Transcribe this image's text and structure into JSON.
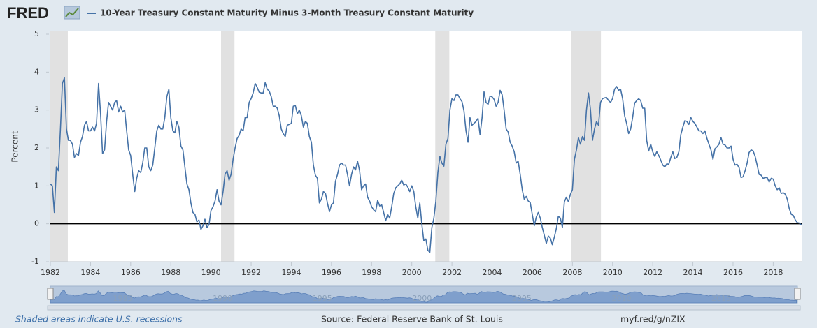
{
  "logo": "FRED",
  "chart_data": {
    "type": "line",
    "y_label": "Percent",
    "series": [
      {
        "name": "10-Year Treasury Constant Maturity Minus 3-Month Treasury Constant Maturity",
        "color": "#4572a7",
        "values": [
          1.05,
          1.0,
          0.3,
          1.5,
          1.4,
          2.5,
          3.7,
          3.85,
          2.5,
          2.2,
          2.2,
          2.1,
          1.75,
          1.85,
          1.8,
          2.15,
          2.3,
          2.6,
          2.7,
          2.45,
          2.45,
          2.55,
          2.45,
          2.65,
          3.7,
          2.9,
          1.85,
          1.95,
          2.7,
          3.2,
          3.1,
          3.0,
          3.2,
          3.25,
          2.95,
          3.1,
          2.95,
          3.0,
          2.45,
          1.95,
          1.8,
          1.3,
          0.85,
          1.2,
          1.4,
          1.35,
          1.6,
          2.0,
          2.0,
          1.5,
          1.4,
          1.55,
          2.0,
          2.45,
          2.6,
          2.5,
          2.5,
          2.8,
          3.35,
          3.55,
          2.8,
          2.45,
          2.4,
          2.7,
          2.55,
          2.05,
          1.95,
          1.5,
          1.05,
          0.9,
          0.55,
          0.3,
          0.25,
          0.05,
          0.1,
          -0.15,
          -0.05,
          0.12,
          -0.1,
          -0.02,
          0.35,
          0.45,
          0.6,
          0.9,
          0.6,
          0.5,
          0.85,
          1.3,
          1.4,
          1.15,
          1.3,
          1.7,
          2.0,
          2.25,
          2.33,
          2.5,
          2.45,
          2.8,
          2.8,
          3.2,
          3.3,
          3.45,
          3.7,
          3.6,
          3.47,
          3.45,
          3.45,
          3.72,
          3.55,
          3.5,
          3.35,
          3.1,
          3.1,
          3.05,
          2.85,
          2.5,
          2.38,
          2.3,
          2.6,
          2.62,
          2.65,
          3.1,
          3.12,
          2.9,
          3.0,
          2.85,
          2.55,
          2.7,
          2.65,
          2.3,
          2.15,
          1.55,
          1.28,
          1.2,
          0.55,
          0.65,
          0.85,
          0.8,
          0.55,
          0.32,
          0.5,
          0.55,
          1.12,
          1.3,
          1.55,
          1.6,
          1.55,
          1.55,
          1.3,
          1.0,
          1.3,
          1.5,
          1.42,
          1.65,
          1.4,
          0.9,
          1.0,
          1.05,
          0.7,
          0.6,
          0.45,
          0.37,
          0.32,
          0.62,
          0.47,
          0.5,
          0.3,
          0.08,
          0.25,
          0.15,
          0.45,
          0.8,
          0.95,
          1.0,
          1.05,
          1.15,
          1.02,
          1.05,
          0.97,
          0.85,
          1.0,
          0.85,
          0.45,
          0.15,
          0.55,
          0.0,
          -0.45,
          -0.4,
          -0.7,
          -0.75,
          -0.1,
          0.15,
          0.6,
          1.35,
          1.78,
          1.6,
          1.52,
          2.1,
          2.25,
          3.0,
          3.3,
          3.25,
          3.4,
          3.4,
          3.3,
          3.22,
          2.98,
          2.45,
          2.15,
          2.8,
          2.6,
          2.65,
          2.7,
          2.78,
          2.35,
          2.8,
          3.48,
          3.2,
          3.15,
          3.37,
          3.35,
          3.28,
          3.1,
          3.2,
          3.52,
          3.4,
          3.0,
          2.5,
          2.42,
          2.15,
          2.05,
          1.9,
          1.6,
          1.65,
          1.3,
          0.9,
          0.65,
          0.72,
          0.6,
          0.56,
          0.25,
          -0.05,
          0.18,
          0.3,
          0.15,
          -0.1,
          -0.3,
          -0.52,
          -0.32,
          -0.38,
          -0.55,
          -0.35,
          -0.12,
          0.2,
          0.15,
          -0.1,
          0.58,
          0.7,
          0.58,
          0.78,
          0.9,
          1.7,
          1.95,
          2.27,
          2.1,
          2.3,
          2.2,
          3.0,
          3.45,
          3.0,
          2.2,
          2.5,
          2.7,
          2.6,
          3.2,
          3.3,
          3.32,
          3.33,
          3.25,
          3.2,
          3.3,
          3.55,
          3.62,
          3.52,
          3.55,
          3.3,
          2.85,
          2.65,
          2.38,
          2.5,
          2.8,
          3.18,
          3.25,
          3.3,
          3.25,
          3.05,
          3.05,
          2.2,
          1.92,
          2.1,
          1.9,
          1.78,
          1.9,
          1.8,
          1.68,
          1.55,
          1.5,
          1.58,
          1.57,
          1.75,
          1.9,
          1.72,
          1.75,
          1.9,
          2.35,
          2.55,
          2.72,
          2.7,
          2.62,
          2.8,
          2.7,
          2.65,
          2.55,
          2.45,
          2.45,
          2.38,
          2.45,
          2.25,
          2.1,
          1.95,
          1.7,
          1.98,
          2.03,
          2.1,
          2.28,
          2.1,
          2.08,
          2.0,
          2.0,
          2.05,
          1.7,
          1.55,
          1.57,
          1.48,
          1.22,
          1.24,
          1.4,
          1.6,
          1.88,
          1.95,
          1.92,
          1.78,
          1.55,
          1.3,
          1.28,
          1.2,
          1.22,
          1.22,
          1.1,
          1.2,
          1.18,
          1.0,
          0.9,
          0.95,
          0.8,
          0.82,
          0.78,
          0.65,
          0.4,
          0.25,
          0.22,
          0.1,
          0.03,
          0.02,
          -0.03
        ]
      }
    ],
    "x": [
      1982,
      1982.1,
      1982.2,
      1982.3,
      1982.4,
      1982.5,
      1982.6,
      1982.7,
      1982.8,
      1982.9,
      1983,
      1983.1,
      1983.2,
      1983.3,
      1983.4,
      1983.5,
      1983.6,
      1983.7,
      1983.8,
      1983.9,
      1984,
      1984.1,
      1984.2,
      1984.3,
      1984.4,
      1984.5,
      1984.6,
      1984.7,
      1984.8,
      1984.9,
      1985,
      1985.1,
      1985.2,
      1985.3,
      1985.4,
      1985.5,
      1985.6,
      1985.7,
      1985.8,
      1985.9,
      1986,
      1986.1,
      1986.2,
      1986.3,
      1986.4,
      1986.5,
      1986.6,
      1986.7,
      1986.8,
      1986.9,
      1987,
      1987.1,
      1987.2,
      1987.3,
      1987.4,
      1987.5,
      1987.6,
      1987.7,
      1987.8,
      1987.9,
      1988,
      1988.1,
      1988.2,
      1988.3,
      1988.4,
      1988.5,
      1988.6,
      1988.7,
      1988.8,
      1988.9,
      1989,
      1989.1,
      1989.2,
      1989.3,
      1989.4,
      1989.5,
      1989.6,
      1989.7,
      1989.8,
      1989.9,
      1990,
      1990.1,
      1990.2,
      1990.3,
      1990.4,
      1990.5,
      1990.6,
      1990.7,
      1990.8,
      1990.9,
      1991,
      1991.1,
      1991.2,
      1991.3,
      1991.4,
      1991.5,
      1991.6,
      1991.7,
      1991.8,
      1991.9,
      1992,
      1992.1,
      1992.2,
      1992.3,
      1992.4,
      1992.5,
      1992.6,
      1992.7,
      1992.8,
      1992.9,
      1993,
      1993.1,
      1993.2,
      1993.3,
      1993.4,
      1993.5,
      1993.6,
      1993.7,
      1993.8,
      1993.9,
      1994,
      1994.1,
      1994.2,
      1994.3,
      1994.4,
      1994.5,
      1994.6,
      1994.7,
      1994.8,
      1994.9,
      1995,
      1995.1,
      1995.2,
      1995.3,
      1995.4,
      1995.5,
      1995.6,
      1995.7,
      1995.8,
      1995.9,
      1996,
      1996.1,
      1996.2,
      1996.3,
      1996.4,
      1996.5,
      1996.6,
      1996.7,
      1996.8,
      1996.9,
      1997,
      1997.1,
      1997.2,
      1997.3,
      1997.4,
      1997.5,
      1997.6,
      1997.7,
      1997.8,
      1997.9,
      1998,
      1998.1,
      1998.2,
      1998.3,
      1998.4,
      1998.5,
      1998.6,
      1998.7,
      1998.8,
      1998.9,
      1999,
      1999.1,
      1999.2,
      1999.3,
      1999.4,
      1999.5,
      1999.6,
      1999.7,
      1999.8,
      1999.9,
      2000,
      2000.1,
      2000.2,
      2000.3,
      2000.4,
      2000.5,
      2000.6,
      2000.7,
      2000.8,
      2000.9,
      2001,
      2001.1,
      2001.2,
      2001.3,
      2001.4,
      2001.5,
      2001.6,
      2001.7,
      2001.8,
      2001.9,
      2002,
      2002.1,
      2002.2,
      2002.3,
      2002.4,
      2002.5,
      2002.6,
      2002.7,
      2002.8,
      2002.9,
      2003,
      2003.1,
      2003.2,
      2003.3,
      2003.4,
      2003.5,
      2003.6,
      2003.7,
      2003.8,
      2003.9,
      2004,
      2004.1,
      2004.2,
      2004.3,
      2004.4,
      2004.5,
      2004.6,
      2004.7,
      2004.8,
      2004.9,
      2005,
      2005.1,
      2005.2,
      2005.3,
      2005.4,
      2005.5,
      2005.6,
      2005.7,
      2005.8,
      2005.9,
      2006,
      2006.1,
      2006.2,
      2006.3,
      2006.4,
      2006.5,
      2006.6,
      2006.7,
      2006.8,
      2006.9,
      2007,
      2007.1,
      2007.2,
      2007.3,
      2007.4,
      2007.5,
      2007.6,
      2007.7,
      2007.8,
      2007.9,
      2008,
      2008.1,
      2008.2,
      2008.3,
      2008.4,
      2008.5,
      2008.6,
      2008.7,
      2008.8,
      2008.9,
      2009,
      2009.1,
      2009.2,
      2009.3,
      2009.4,
      2009.5,
      2009.6,
      2009.7,
      2009.8,
      2009.9,
      2010,
      2010.1,
      2010.2,
      2010.3,
      2010.4,
      2010.5,
      2010.6,
      2010.7,
      2010.8,
      2010.9,
      2011,
      2011.1,
      2011.2,
      2011.3,
      2011.4,
      2011.5,
      2011.6,
      2011.7,
      2011.8,
      2011.9,
      2012,
      2012.1,
      2012.2,
      2012.3,
      2012.4,
      2012.5,
      2012.6,
      2012.7,
      2012.8,
      2012.9,
      2013,
      2013.1,
      2013.2,
      2013.3,
      2013.4,
      2013.5,
      2013.6,
      2013.7,
      2013.8,
      2013.9,
      2014,
      2014.1,
      2014.2,
      2014.3,
      2014.4,
      2014.5,
      2014.6,
      2014.7,
      2014.8,
      2014.9,
      2015,
      2015.1,
      2015.2,
      2015.3,
      2015.4,
      2015.5,
      2015.6,
      2015.7,
      2015.8,
      2015.9,
      2016,
      2016.1,
      2016.2,
      2016.3,
      2016.4,
      2016.5,
      2016.6,
      2016.7,
      2016.8,
      2016.9,
      2017,
      2017.1,
      2017.2,
      2017.3,
      2017.4,
      2017.5,
      2017.6,
      2017.7,
      2017.8,
      2017.9,
      2018,
      2018.1,
      2018.2,
      2018.3,
      2018.4,
      2018.5,
      2018.6,
      2018.7,
      2018.8,
      2018.9,
      2019,
      2019.1,
      2019.2,
      2019.3,
      2019.4
    ],
    "xlim": [
      1982,
      2019.45
    ],
    "xticks": [
      1982,
      1984,
      1986,
      1988,
      1990,
      1992,
      1994,
      1996,
      1998,
      2000,
      2002,
      2004,
      2006,
      2008,
      2010,
      2012,
      2014,
      2016,
      2018
    ],
    "ylim": [
      -1,
      5
    ],
    "yticks": [
      -1,
      0,
      1,
      2,
      3,
      4,
      5
    ],
    "reference_line": 0,
    "reference_line_color": "#000000",
    "recessions": [
      [
        1982,
        1982.87
      ],
      [
        1990.5,
        1991.17
      ],
      [
        2001.17,
        2001.87
      ],
      [
        2007.92,
        2009.42
      ]
    ],
    "recession_color": "#e1e1e1",
    "navigator_ticks": [
      1985,
      1990,
      1995,
      2000,
      2005,
      2010,
      2015
    ],
    "footnote": "Shaded areas indicate U.S. recessions",
    "source": "Source: Federal Reserve Bank of St. Louis",
    "link": "myf.red/g/nZIX"
  }
}
